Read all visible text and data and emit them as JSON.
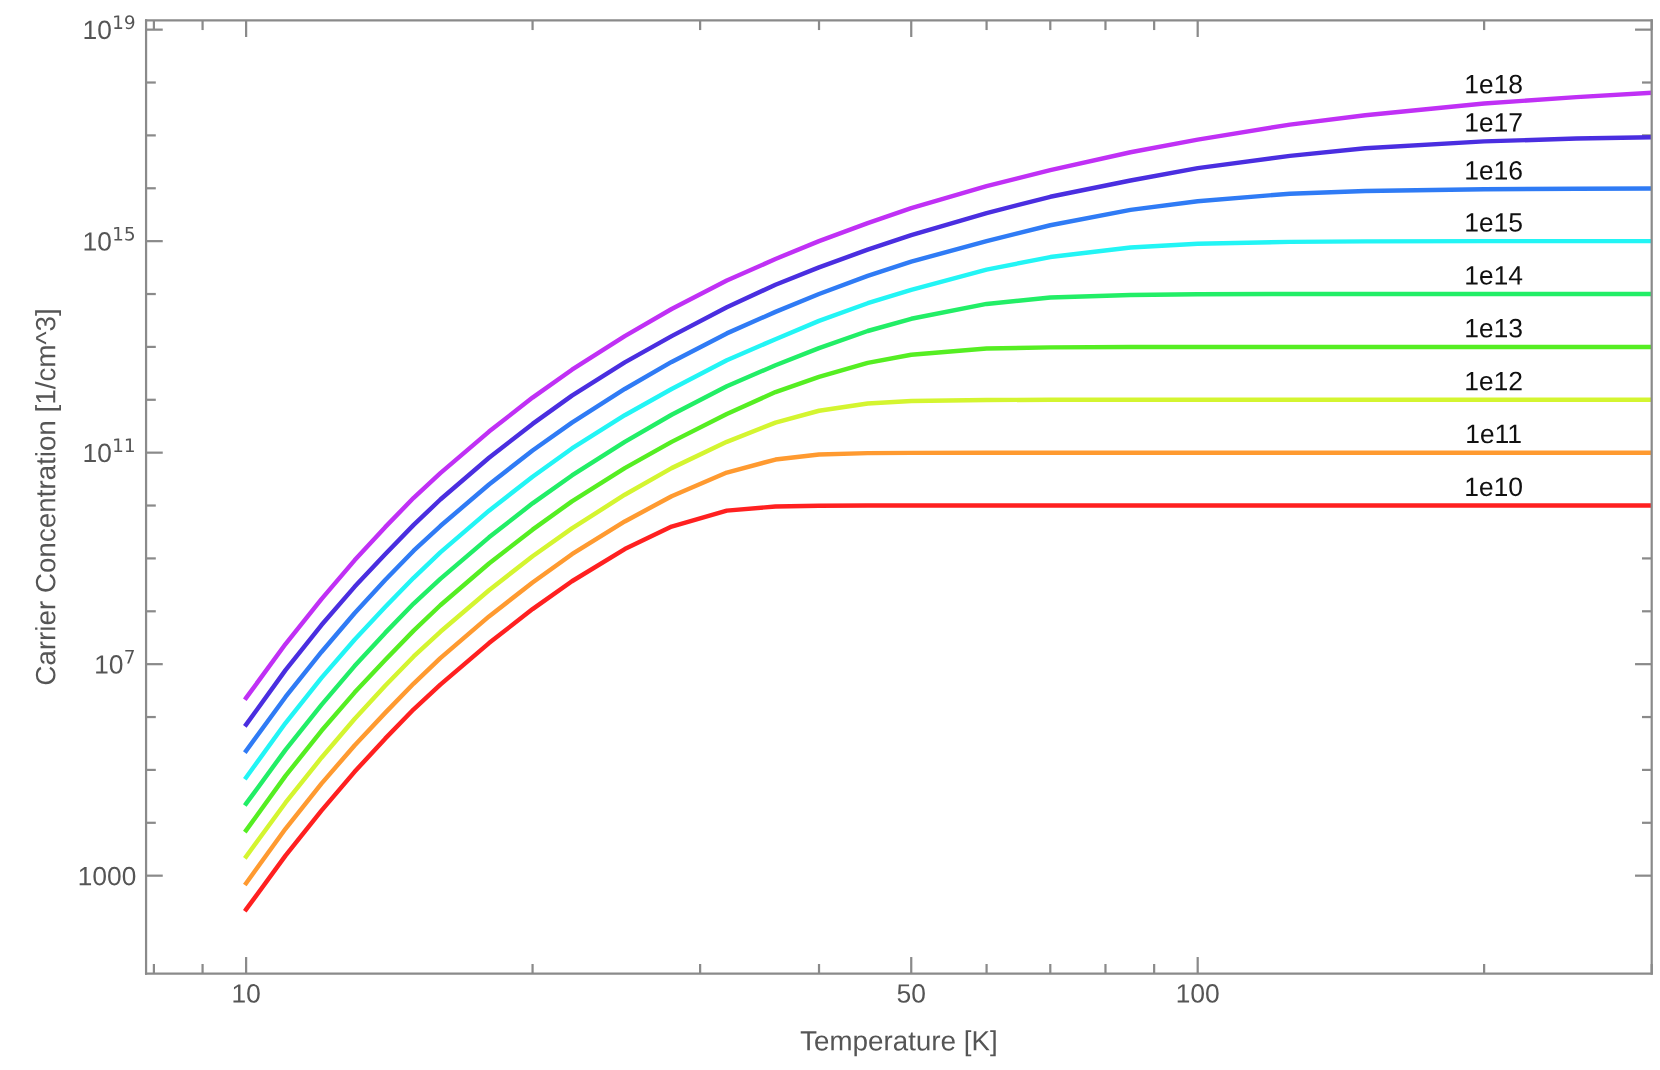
{
  "chart_data": {
    "type": "line",
    "xlabel": "Temperature [K]",
    "ylabel": "Carrier Concentration [1/cm^3]",
    "log": "xy",
    "grid": false,
    "legend": false,
    "marker": "none",
    "line_style": "solid",
    "x": [
      10,
      11,
      12,
      13,
      14,
      15,
      16,
      18,
      20,
      22,
      25,
      28,
      32,
      36,
      40,
      45,
      50,
      60,
      70,
      85,
      100,
      125,
      150,
      200,
      250,
      300
    ],
    "xlim": [
      7.85,
      300
    ],
    "xticks": [
      {
        "value": 8,
        "label": null
      },
      {
        "value": 9,
        "label": null
      },
      10,
      {
        "value": 20,
        "label": null
      },
      {
        "value": 30,
        "label": null
      },
      {
        "value": 40,
        "label": null
      },
      50,
      {
        "value": 60,
        "label": null
      },
      {
        "value": 70,
        "label": null
      },
      {
        "value": 80,
        "label": null
      },
      {
        "value": 90,
        "label": null
      },
      100,
      {
        "value": 200,
        "label": null
      },
      {
        "value": 300,
        "label": null
      }
    ],
    "ylim": [
      14,
      1.5e+19
    ],
    "yticks": [
      1000,
      {
        "value": 10000.0,
        "label": null
      },
      {
        "value": 100000.0,
        "label": null
      },
      {
        "value": 1000000.0,
        "label": null
      },
      {
        "value": 10000000.0,
        "label": "10$^{7}$"
      },
      {
        "value": 100000000.0,
        "label": null
      },
      {
        "value": 1000000000.0,
        "label": null
      },
      {
        "value": 10000000000.0,
        "label": null
      },
      {
        "value": 100000000000.0,
        "label": "10$^{11}$"
      },
      {
        "value": 1000000000000.0,
        "label": null
      },
      {
        "value": 10000000000000.0,
        "label": null
      },
      {
        "value": 100000000000000.0,
        "label": null
      },
      {
        "value": 1000000000000000.0,
        "label": "10$^{15}$"
      },
      {
        "value": 1e+16,
        "label": null
      },
      {
        "value": 1e+17,
        "label": null
      },
      {
        "value": 1e+18,
        "label": null
      },
      {
        "value": 1e+19,
        "label": "10$^{19}$"
      }
    ],
    "series": [
      {
        "name": "1e10",
        "color": "#ff2020",
        "values": [
          230.0,
          2400.0,
          17000.0,
          92000.0,
          390000.0,
          1400000.0,
          4100000.0,
          25000000.0,
          110000000.0,
          370000000.0,
          1500000000.0,
          4000000000.0,
          8000000000.0,
          9600000000.0,
          9900000000.0,
          10000000000.0,
          10000000000.0,
          10000000000.0,
          10000000000.0,
          10000000000.0,
          10000000000.0,
          10000000000.0,
          10000000000.0,
          10000000000.0,
          10000000000.0,
          10000000000.0
        ]
      },
      {
        "name": "1e11",
        "color": "#ff9a30",
        "values": [
          720.0,
          7700.0,
          55000.0,
          290000.0,
          1200000.0,
          4300000.0,
          13000000.0,
          80000000.0,
          350000000.0,
          1200000000.0,
          5000000000.0,
          15000000000.0,
          42000000000.0,
          74000000000.0,
          92000000000.0,
          98000000000.0,
          99000000000.0,
          100000000000.0,
          100000000000.0,
          100000000000.0,
          100000000000.0,
          100000000000.0,
          100000000000.0,
          100000000000.0,
          100000000000.0,
          100000000000.0
        ]
      },
      {
        "name": "1e12",
        "color": "#d4f530",
        "values": [
          2300.0,
          24000.0,
          170000.0,
          920000.0,
          3900000.0,
          14000000.0,
          41000000.0,
          250000000.0,
          1100000000.0,
          3700000000.0,
          16000000000.0,
          51000000000.0,
          160000000000.0,
          370000000000.0,
          620000000000.0,
          850000000000.0,
          950000000000.0,
          990000000000.0,
          1000000000000.0,
          1000000000000.0,
          1000000000000.0,
          1000000000000.0,
          1000000000000.0,
          1000000000000.0,
          1000000000000.0,
          1000000000000.0
        ]
      },
      {
        "name": "1e13",
        "color": "#55ee22",
        "values": [
          7200.0,
          77000.0,
          550000.0,
          2900000.0,
          12000000.0,
          43000000.0,
          130000000.0,
          800000000.0,
          3500000000.0,
          12000000000.0,
          51000000000.0,
          160000000000.0,
          540000000000.0,
          1400000000000.0,
          2700000000000.0,
          5000000000000.0,
          7100000000000.0,
          9300000000000.0,
          9800000000000.0,
          10000000000000.0,
          10000000000000.0,
          10000000000000.0,
          10000000000000.0,
          10000000000000.0,
          10000000000000.0,
          10000000000000.0
        ]
      },
      {
        "name": "1e14",
        "color": "#22ee66",
        "values": [
          23000.0,
          240000.0,
          1700000.0,
          9200000.0,
          39000000.0,
          140000000.0,
          410000000.0,
          2500000000.0,
          11000000000.0,
          37000000000.0,
          160000000000.0,
          520000000000.0,
          1800000000000.0,
          4500000000000.0,
          9500000000000.0,
          20000000000000.0,
          34000000000000.0,
          65000000000000.0,
          86000000000000.0,
          96000000000000.0,
          99000000000000.0,
          100000000000000.0,
          100000000000000.0,
          100000000000000.0,
          100000000000000.0,
          100000000000000.0
        ]
      },
      {
        "name": "1e15",
        "color": "#22f5f5",
        "values": [
          72000.0,
          770000.0,
          5500000.0,
          29000000.0,
          120000000.0,
          430000000.0,
          1300000000.0,
          8000000000.0,
          35000000000.0,
          120000000000.0,
          510000000000.0,
          1600000000000.0,
          5600000000000.0,
          14000000000000.0,
          31000000000000.0,
          67000000000000.0,
          120000000000000.0,
          290000000000000.0,
          500000000000000.0,
          760000000000000.0,
          890000000000000.0,
          970000000000000.0,
          990000000000000.0,
          1000000000000000.0,
          1000000000000000.0,
          1000000000000000.0
        ]
      },
      {
        "name": "1e16",
        "color": "#2f7bf5",
        "values": [
          230000.0,
          2400000.0,
          17000000.0,
          92000000.0,
          390000000.0,
          1400000000.0,
          4100000000.0,
          25000000000.0,
          110000000000.0,
          370000000000.0,
          1600000000000.0,
          5200000000000.0,
          18000000000000.0,
          46000000000000.0,
          100000000000000.0,
          220000000000000.0,
          410000000000000.0,
          1000000000000000.0,
          2000000000000000.0,
          3900000000000000.0,
          5700000000000000.0,
          7900000000000000.0,
          8900000000000000.0,
          9600000000000000.0,
          9800000000000000.0,
          9900000000000000.0
        ]
      },
      {
        "name": "1e17",
        "color": "#4a2ee0",
        "values": [
          720000.0,
          7700000.0,
          55000000.0,
          290000000.0,
          1200000000.0,
          4300000000.0,
          13000000000.0,
          80000000000.0,
          350000000000.0,
          1200000000000.0,
          5100000000000.0,
          16000000000000.0,
          56000000000000.0,
          150000000000000.0,
          320000000000000.0,
          690000000000000.0,
          1300000000000000.0,
          3400000000000000.0,
          6900000000000000.0,
          1.4e+16,
          2.4e+16,
          4.1e+16,
          5.7e+16,
          7.7e+16,
          8.7e+16,
          9.2e+16
        ]
      },
      {
        "name": "1e18",
        "color": "#c030f5",
        "values": [
          2300000.0,
          24000000.0,
          170000000.0,
          920000000.0,
          3900000000.0,
          14000000000.0,
          41000000000.0,
          250000000000.0,
          1100000000000.0,
          3700000000000.0,
          16000000000000.0,
          52000000000000.0,
          180000000000000.0,
          460000000000000.0,
          1000000000000000.0,
          2200000000000000.0,
          4200000000000000.0,
          1.1e+16,
          2.2e+16,
          4.8e+16,
          8.3e+16,
          1.6e+17,
          2.4e+17,
          4e+17,
          5.3e+17,
          6.4e+17
        ]
      }
    ]
  }
}
